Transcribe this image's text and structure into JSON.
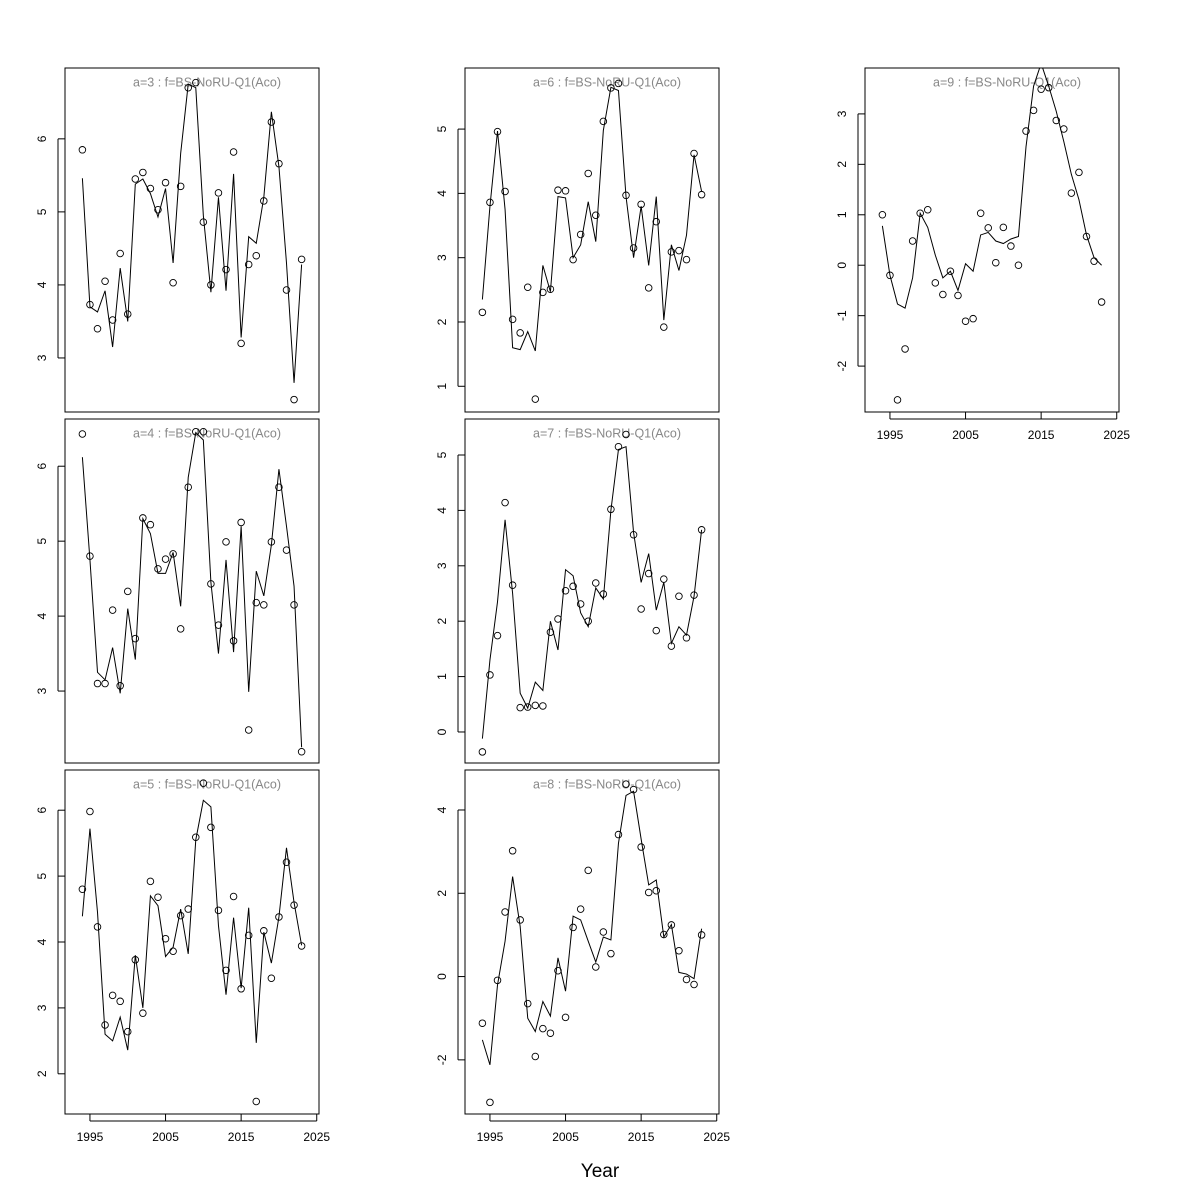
{
  "chart_data": [
    {
      "type": "scatter-line",
      "title": "a=3  :  f=BS-NoRU-Q1(Aco)",
      "xlim": [
        1991.7,
        2025.3
      ],
      "ylim": [
        2.26,
        6.97
      ],
      "yticks": [
        3,
        4,
        5,
        6
      ],
      "x": [
        1994,
        1995,
        1996,
        1997,
        1998,
        1999,
        2000,
        2001,
        2002,
        2003,
        2004,
        2005,
        2006,
        2007,
        2008,
        2009,
        2010,
        2011,
        2012,
        2013,
        2014,
        2015,
        2016,
        2017,
        2018,
        2019,
        2020,
        2021,
        2022,
        2023
      ],
      "series": [
        {
          "kind": "points",
          "color": "#000000",
          "values": [
            5.85,
            3.73,
            3.4,
            4.05,
            3.52,
            4.43,
            3.6,
            5.45,
            5.54,
            5.32,
            5.03,
            5.4,
            4.03,
            5.35,
            6.7,
            6.77,
            4.86,
            4.0,
            5.26,
            4.21,
            5.82,
            3.2,
            4.28,
            4.4,
            5.15,
            6.23,
            5.66,
            3.93,
            2.43,
            4.35
          ]
        },
        {
          "kind": "line",
          "color": "#000000",
          "values": [
            5.46,
            3.7,
            3.63,
            3.92,
            3.15,
            4.23,
            3.5,
            5.38,
            5.45,
            5.25,
            4.93,
            5.32,
            4.3,
            5.8,
            6.75,
            6.7,
            4.95,
            3.9,
            5.2,
            3.92,
            5.52,
            3.28,
            4.66,
            4.57,
            5.2,
            6.37,
            5.62,
            4.3,
            2.66,
            4.28
          ]
        }
      ]
    },
    {
      "type": "scatter-line",
      "title": "a=4  :  f=BS-NoRU-Q1(Aco)",
      "xlim": [
        1991.7,
        2025.3
      ],
      "ylim": [
        2.04,
        6.63
      ],
      "yticks": [
        3,
        4,
        5,
        6
      ],
      "x": [
        1994,
        1995,
        1996,
        1997,
        1998,
        1999,
        2000,
        2001,
        2002,
        2003,
        2004,
        2005,
        2006,
        2007,
        2008,
        2009,
        2010,
        2011,
        2012,
        2013,
        2014,
        2015,
        2016,
        2017,
        2018,
        2019,
        2020,
        2021,
        2022,
        2023
      ],
      "series": [
        {
          "kind": "points",
          "color": "#000000",
          "values": [
            6.43,
            4.8,
            3.1,
            3.1,
            4.08,
            3.07,
            4.33,
            3.7,
            5.31,
            5.22,
            4.63,
            4.76,
            4.83,
            3.83,
            5.72,
            6.46,
            6.46,
            4.43,
            3.88,
            4.99,
            3.67,
            5.25,
            2.48,
            4.18,
            4.15,
            4.99,
            5.72,
            4.88,
            4.15,
            2.19
          ]
        },
        {
          "kind": "line",
          "color": "#000000",
          "values": [
            6.12,
            4.75,
            3.25,
            3.15,
            3.58,
            2.97,
            4.1,
            3.42,
            5.3,
            5.1,
            4.57,
            4.57,
            4.85,
            4.13,
            5.85,
            6.45,
            6.35,
            4.45,
            3.5,
            4.75,
            3.52,
            5.2,
            2.99,
            4.6,
            4.27,
            4.95,
            5.96,
            5.2,
            4.4,
            2.25
          ]
        }
      ]
    },
    {
      "type": "scatter-line",
      "title": "a=5  :  f=BS-NoRU-Q1(Aco)",
      "xlim": [
        1991.7,
        2025.3
      ],
      "ylim": [
        1.39,
        6.61
      ],
      "yticks": [
        2,
        3,
        4,
        5,
        6
      ],
      "xticks": [
        1995,
        2005,
        2015,
        2025
      ],
      "x": [
        1994,
        1995,
        1996,
        1997,
        1998,
        1999,
        2000,
        2001,
        2002,
        2003,
        2004,
        2005,
        2006,
        2007,
        2008,
        2009,
        2010,
        2011,
        2012,
        2013,
        2014,
        2015,
        2016,
        2017,
        2018,
        2019,
        2020,
        2021,
        2022,
        2023
      ],
      "series": [
        {
          "kind": "points",
          "color": "#000000",
          "values": [
            4.8,
            5.98,
            4.23,
            2.74,
            3.19,
            3.1,
            2.64,
            3.73,
            2.92,
            4.92,
            4.68,
            4.05,
            3.86,
            4.4,
            4.5,
            5.59,
            6.41,
            5.74,
            4.48,
            3.57,
            4.69,
            3.29,
            4.1,
            1.58,
            4.17,
            3.45,
            4.38,
            5.21,
            4.56,
            3.94
          ]
        },
        {
          "kind": "line",
          "color": "#000000",
          "values": [
            4.39,
            5.72,
            4.45,
            2.6,
            2.5,
            2.86,
            2.36,
            3.8,
            3.0,
            4.7,
            4.55,
            3.78,
            3.92,
            4.5,
            3.82,
            5.55,
            6.15,
            6.05,
            4.25,
            3.2,
            4.37,
            3.3,
            4.52,
            2.47,
            4.15,
            3.68,
            4.38,
            5.43,
            4.6,
            3.95
          ]
        }
      ]
    },
    {
      "type": "scatter-line",
      "title": "a=6  :  f=BS-NoRU-Q1(Aco)",
      "xlim": [
        1991.7,
        2025.3
      ],
      "ylim": [
        0.6,
        5.95
      ],
      "yticks": [
        1,
        2,
        3,
        4,
        5
      ],
      "x": [
        1994,
        1995,
        1996,
        1997,
        1998,
        1999,
        2000,
        2001,
        2002,
        2003,
        2004,
        2005,
        2006,
        2007,
        2008,
        2009,
        2010,
        2011,
        2012,
        2013,
        2014,
        2015,
        2016,
        2017,
        2018,
        2019,
        2020,
        2021,
        2022,
        2023
      ],
      "series": [
        {
          "kind": "points",
          "color": "#000000",
          "values": [
            2.15,
            3.86,
            4.96,
            4.03,
            2.04,
            1.83,
            2.54,
            0.8,
            2.46,
            2.51,
            4.05,
            4.04,
            2.97,
            3.36,
            4.31,
            3.66,
            5.12,
            5.64,
            5.71,
            3.97,
            3.15,
            3.83,
            2.53,
            3.56,
            1.92,
            3.09,
            3.11,
            2.97,
            4.62,
            3.98
          ]
        },
        {
          "kind": "line",
          "color": "#000000",
          "values": [
            2.35,
            3.8,
            4.97,
            3.75,
            1.6,
            1.57,
            1.85,
            1.55,
            2.88,
            2.47,
            3.95,
            3.93,
            3.0,
            3.2,
            3.87,
            3.25,
            4.98,
            5.65,
            5.6,
            3.95,
            3.0,
            3.8,
            2.88,
            3.95,
            2.03,
            3.2,
            2.8,
            3.35,
            4.6,
            4.03
          ]
        }
      ]
    },
    {
      "type": "scatter-line",
      "title": "a=7  :  f=BS-NoRU-Q1(Aco)",
      "xlim": [
        1991.7,
        2025.3
      ],
      "ylim": [
        -0.56,
        5.65
      ],
      "yticks": [
        0,
        1,
        2,
        3,
        4,
        5
      ],
      "x": [
        1994,
        1995,
        1996,
        1997,
        1998,
        1999,
        2000,
        2001,
        2002,
        2003,
        2004,
        2005,
        2006,
        2007,
        2008,
        2009,
        2010,
        2011,
        2012,
        2013,
        2014,
        2015,
        2016,
        2017,
        2018,
        2019,
        2020,
        2021,
        2022,
        2023
      ],
      "series": [
        {
          "kind": "points",
          "color": "#000000",
          "values": [
            -0.36,
            1.03,
            1.74,
            4.14,
            2.65,
            0.44,
            0.45,
            0.48,
            0.47,
            1.8,
            2.04,
            2.55,
            2.63,
            2.31,
            2.0,
            2.69,
            2.49,
            4.02,
            5.15,
            5.37,
            3.56,
            2.22,
            2.86,
            1.83,
            2.76,
            1.55,
            2.45,
            1.7,
            2.47,
            3.65
          ]
        },
        {
          "kind": "line",
          "color": "#000000",
          "values": [
            -0.12,
            1.3,
            2.35,
            3.83,
            2.5,
            0.7,
            0.43,
            0.9,
            0.75,
            2.0,
            1.48,
            2.93,
            2.82,
            2.15,
            1.9,
            2.6,
            2.4,
            4.0,
            5.1,
            5.15,
            3.6,
            2.7,
            3.22,
            2.2,
            2.7,
            1.6,
            1.9,
            1.75,
            2.45,
            3.65
          ]
        }
      ]
    },
    {
      "type": "scatter-line",
      "title": "a=8  :  f=BS-NoRU-Q1(Aco)",
      "xlim": [
        1991.7,
        2025.3
      ],
      "ylim": [
        -3.3,
        4.96
      ],
      "yticks": [
        -2,
        0,
        2,
        4
      ],
      "xticks": [
        1995,
        2005,
        2015,
        2025
      ],
      "x": [
        1994,
        1995,
        1996,
        1997,
        1998,
        1999,
        2000,
        2001,
        2002,
        2003,
        2004,
        2005,
        2006,
        2007,
        2008,
        2009,
        2010,
        2011,
        2012,
        2013,
        2014,
        2015,
        2016,
        2017,
        2018,
        2019,
        2020,
        2021,
        2022,
        2023
      ],
      "series": [
        {
          "kind": "points",
          "color": "#000000",
          "values": [
            -1.12,
            -3.02,
            -0.09,
            1.55,
            3.02,
            1.36,
            -0.65,
            -1.92,
            -1.25,
            -1.36,
            0.14,
            -0.98,
            1.18,
            1.62,
            2.55,
            0.23,
            1.07,
            0.55,
            3.41,
            4.62,
            4.49,
            3.11,
            2.02,
            2.06,
            1.01,
            1.24,
            0.62,
            -0.07,
            -0.19,
            1.0
          ]
        },
        {
          "kind": "line",
          "color": "#000000",
          "values": [
            -1.52,
            -2.12,
            -0.2,
            0.85,
            2.4,
            1.2,
            -1.0,
            -1.32,
            -0.6,
            -0.95,
            0.45,
            -0.35,
            1.45,
            1.36,
            0.85,
            0.35,
            0.95,
            0.88,
            3.2,
            4.35,
            4.45,
            3.3,
            2.2,
            2.32,
            0.95,
            1.25,
            0.1,
            0.06,
            -0.05,
            1.15
          ]
        }
      ]
    },
    {
      "type": "scatter-line",
      "title": "a=9  :  f=BS-NoRU-Q1(Aco)",
      "xlim": [
        1991.7,
        2025.3
      ],
      "ylim": [
        -2.91,
        3.91
      ],
      "yticks": [
        -2,
        -1,
        0,
        1,
        2,
        3
      ],
      "xticks": [
        1995,
        2005,
        2015,
        2025
      ],
      "x": [
        1994,
        1995,
        1996,
        1997,
        1998,
        1999,
        2000,
        2001,
        2002,
        2003,
        2004,
        2005,
        2006,
        2007,
        2008,
        2009,
        2010,
        2011,
        2012,
        2013,
        2014,
        2015,
        2016,
        2017,
        2018,
        2019,
        2020,
        2021,
        2022,
        2023
      ],
      "series": [
        {
          "kind": "points",
          "color": "#000000",
          "values": [
            1.0,
            -0.2,
            -2.67,
            -1.66,
            0.48,
            1.03,
            1.1,
            -0.35,
            -0.58,
            -0.12,
            -0.6,
            -1.11,
            -1.06,
            1.03,
            0.74,
            0.05,
            0.75,
            0.38,
            0.0,
            2.66,
            3.07,
            3.49,
            3.52,
            2.87,
            2.7,
            1.43,
            1.84,
            0.57,
            0.08,
            -0.73
          ]
        },
        {
          "kind": "line",
          "color": "#000000",
          "values": [
            0.78,
            -0.2,
            -0.77,
            -0.85,
            -0.25,
            1.03,
            0.75,
            0.2,
            -0.25,
            -0.12,
            -0.5,
            0.03,
            -0.12,
            0.6,
            0.65,
            0.48,
            0.43,
            0.52,
            0.57,
            2.35,
            3.55,
            4.0,
            3.55,
            3.05,
            2.45,
            1.8,
            1.3,
            0.6,
            0.15,
            0.0
          ]
        }
      ]
    }
  ],
  "xlabel": "Year"
}
